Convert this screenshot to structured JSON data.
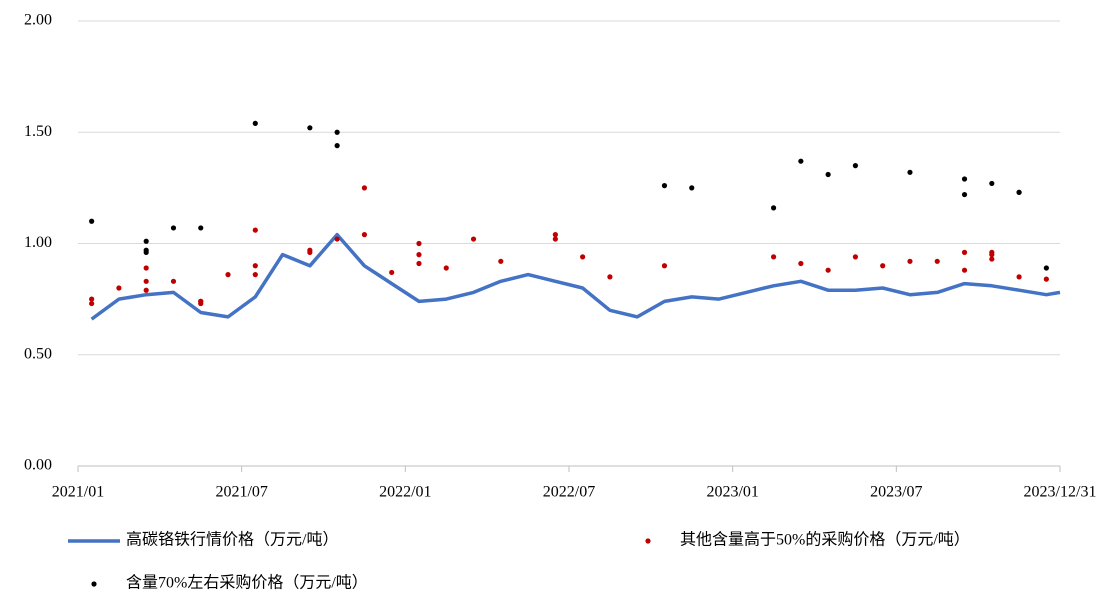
{
  "chart_data": {
    "type": "line",
    "xlim": [
      "2021/01",
      "2023/12/31"
    ],
    "xticks": [
      "2021/01",
      "2021/07",
      "2022/01",
      "2022/07",
      "2023/01",
      "2023/07",
      "2023/12/31"
    ],
    "ylim": [
      0,
      2
    ],
    "yticks": [
      {
        "value": 0,
        "label": "0.00"
      },
      {
        "value": 0.5,
        "label": "0.50"
      },
      {
        "value": 1,
        "label": "1.00"
      },
      {
        "value": 1.5,
        "label": "1.50"
      },
      {
        "value": 2,
        "label": "2.00"
      }
    ],
    "grid": true,
    "series": [
      {
        "name": "高碳铬铁行情价格（万元/吨）",
        "color": "#4472c4",
        "type": "line",
        "x": [
          "2021/01",
          "2021/02",
          "2021/03",
          "2021/04",
          "2021/05",
          "2021/06",
          "2021/07",
          "2021/08",
          "2021/09",
          "2021/10",
          "2021/11",
          "2021/12",
          "2022/01",
          "2022/02",
          "2022/03",
          "2022/04",
          "2022/05",
          "2022/06",
          "2022/07",
          "2022/08",
          "2022/09",
          "2022/10",
          "2022/11",
          "2022/12",
          "2023/01",
          "2023/02",
          "2023/03",
          "2023/04",
          "2023/05",
          "2023/06",
          "2023/07",
          "2023/08",
          "2023/09",
          "2023/10",
          "2023/11",
          "2023/12",
          "2023/12/31"
        ],
        "values": [
          0.66,
          0.75,
          0.77,
          0.78,
          0.69,
          0.67,
          0.76,
          0.95,
          0.9,
          1.04,
          0.9,
          0.82,
          0.74,
          0.75,
          0.78,
          0.83,
          0.86,
          0.83,
          0.8,
          0.7,
          0.67,
          0.74,
          0.76,
          0.75,
          0.78,
          0.81,
          0.83,
          0.79,
          0.79,
          0.8,
          0.77,
          0.78,
          0.82,
          0.81,
          0.79,
          0.77,
          0.78
        ]
      },
      {
        "name": "其他含量高于50%的采购价格（万元/吨）",
        "color": "#c00000",
        "type": "scatter",
        "x": [
          "2021/01",
          "2021/01",
          "2021/02",
          "2021/03",
          "2021/03",
          "2021/03",
          "2021/04",
          "2021/05",
          "2021/05",
          "2021/05",
          "2021/06",
          "2021/07",
          "2021/07",
          "2021/07",
          "2021/09",
          "2021/09",
          "2021/10",
          "2021/11",
          "2021/11",
          "2021/12",
          "2022/01",
          "2022/01",
          "2022/01",
          "2022/02",
          "2022/03",
          "2022/04",
          "2022/06",
          "2022/06",
          "2022/07",
          "2022/08",
          "2022/10",
          "2023/02",
          "2023/03",
          "2023/04",
          "2023/05",
          "2023/06",
          "2023/07",
          "2023/08",
          "2023/09",
          "2023/09",
          "2023/10",
          "2023/10",
          "2023/10",
          "2023/11",
          "2023/12"
        ],
        "values": [
          0.75,
          0.73,
          0.8,
          0.79,
          0.83,
          0.89,
          0.83,
          0.74,
          0.73,
          0.74,
          0.86,
          0.86,
          0.9,
          1.06,
          0.96,
          0.97,
          1.02,
          1.25,
          1.04,
          0.87,
          1.0,
          0.91,
          0.95,
          0.89,
          1.02,
          0.92,
          1.02,
          1.04,
          0.94,
          0.85,
          0.9,
          0.94,
          0.91,
          0.88,
          0.94,
          0.9,
          0.92,
          0.92,
          0.88,
          0.96,
          0.93,
          0.95,
          0.96,
          0.85,
          0.84
        ]
      },
      {
        "name": "含量70%左右采购价格（万元/吨）",
        "color": "#000000",
        "type": "scatter",
        "x": [
          "2021/01",
          "2021/03",
          "2021/03",
          "2021/03",
          "2021/04",
          "2021/05",
          "2021/07",
          "2021/09",
          "2021/10",
          "2021/10",
          "2022/10",
          "2022/11",
          "2023/02",
          "2023/03",
          "2023/04",
          "2023/05",
          "2023/07",
          "2023/09",
          "2023/09",
          "2023/10",
          "2023/11",
          "2023/11",
          "2023/12"
        ],
        "values": [
          1.1,
          1.01,
          0.97,
          0.96,
          1.07,
          1.07,
          1.54,
          1.52,
          1.5,
          1.44,
          1.26,
          1.25,
          1.16,
          1.37,
          1.31,
          1.35,
          1.32,
          1.22,
          1.29,
          1.27,
          1.23,
          1.23,
          0.89
        ]
      }
    ]
  }
}
